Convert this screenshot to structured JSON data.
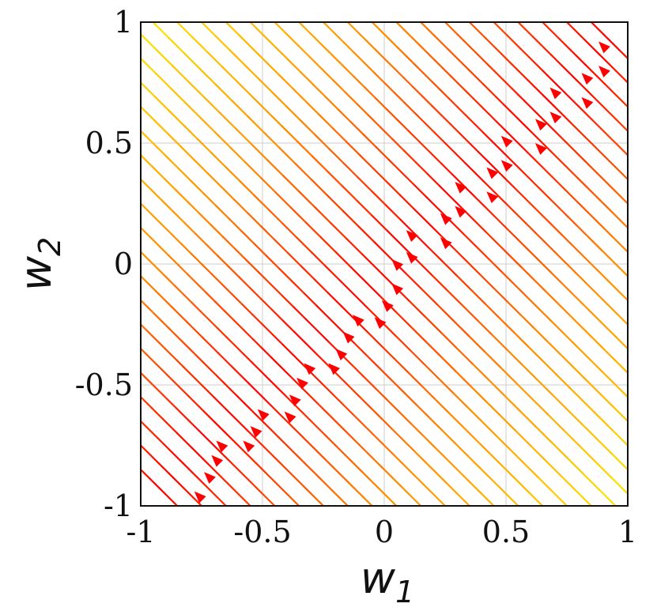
{
  "chart_data": {
    "type": "streamplot",
    "title": "",
    "xlabel": {
      "base": "w",
      "sub": "1"
    },
    "ylabel": {
      "base": "w",
      "sub": "2"
    },
    "xlim": [
      -1,
      1
    ],
    "ylim": [
      -1,
      1
    ],
    "xticks": [
      -1,
      -0.5,
      0,
      0.5,
      1
    ],
    "yticks": [
      -1,
      -0.5,
      0,
      0.5,
      1
    ],
    "xtick_labels": [
      "-1",
      "-0.5",
      "0",
      "0.5",
      "1"
    ],
    "ytick_labels": [
      "-1",
      "-0.5",
      "0",
      "0.5",
      "1"
    ],
    "grid": true,
    "legend": "none",
    "field": "flow along direction (-1, 1); speed grows with |w1 - w2|, largest near the diagonal",
    "flow_direction": [
      -1,
      1
    ],
    "colormap": [
      "#ff0000",
      "#ff8c00",
      "#ffe000"
    ],
    "arrow_color": "#ff0000",
    "stream_offsets": [
      -1.85,
      -1.75,
      -1.65,
      -1.55,
      -1.45,
      -1.35,
      -1.25,
      -1.15,
      -1.05,
      -0.95,
      -0.85,
      -0.75,
      -0.65,
      -0.55,
      -0.45,
      -0.35,
      -0.25,
      -0.15,
      -0.05,
      0.05,
      0.15,
      0.25,
      0.35,
      0.45,
      0.55,
      0.65,
      0.75,
      0.85,
      0.95,
      1.05,
      1.15,
      1.25,
      1.35,
      1.45,
      1.55,
      1.65,
      1.75,
      1.85
    ],
    "arrows": [
      [
        -0.78,
        -0.94
      ],
      [
        -0.74,
        -0.86
      ],
      [
        -0.71,
        -0.79
      ],
      [
        -0.69,
        -0.73
      ],
      [
        -0.58,
        -0.73
      ],
      [
        -0.55,
        -0.67
      ],
      [
        -0.52,
        -0.6
      ],
      [
        -0.41,
        -0.61
      ],
      [
        -0.39,
        -0.54
      ],
      [
        -0.36,
        -0.47
      ],
      [
        -0.33,
        -0.41
      ],
      [
        -0.23,
        -0.41
      ],
      [
        -0.2,
        -0.35
      ],
      [
        -0.17,
        -0.28
      ],
      [
        -0.13,
        -0.21
      ],
      [
        -0.04,
        -0.22
      ],
      [
        -0.01,
        -0.15
      ],
      [
        0.03,
        -0.08
      ],
      [
        0.03,
        0.02
      ],
      [
        0.09,
        0.05
      ],
      [
        0.09,
        0.14
      ],
      [
        0.23,
        0.11
      ],
      [
        0.23,
        0.21
      ],
      [
        0.29,
        0.24
      ],
      [
        0.29,
        0.34
      ],
      [
        0.42,
        0.3
      ],
      [
        0.42,
        0.4
      ],
      [
        0.48,
        0.43
      ],
      [
        0.48,
        0.53
      ],
      [
        0.62,
        0.5
      ],
      [
        0.62,
        0.6
      ],
      [
        0.68,
        0.63
      ],
      [
        0.68,
        0.73
      ],
      [
        0.81,
        0.69
      ],
      [
        0.81,
        0.79
      ],
      [
        0.88,
        0.82
      ],
      [
        0.88,
        0.92
      ]
    ]
  }
}
